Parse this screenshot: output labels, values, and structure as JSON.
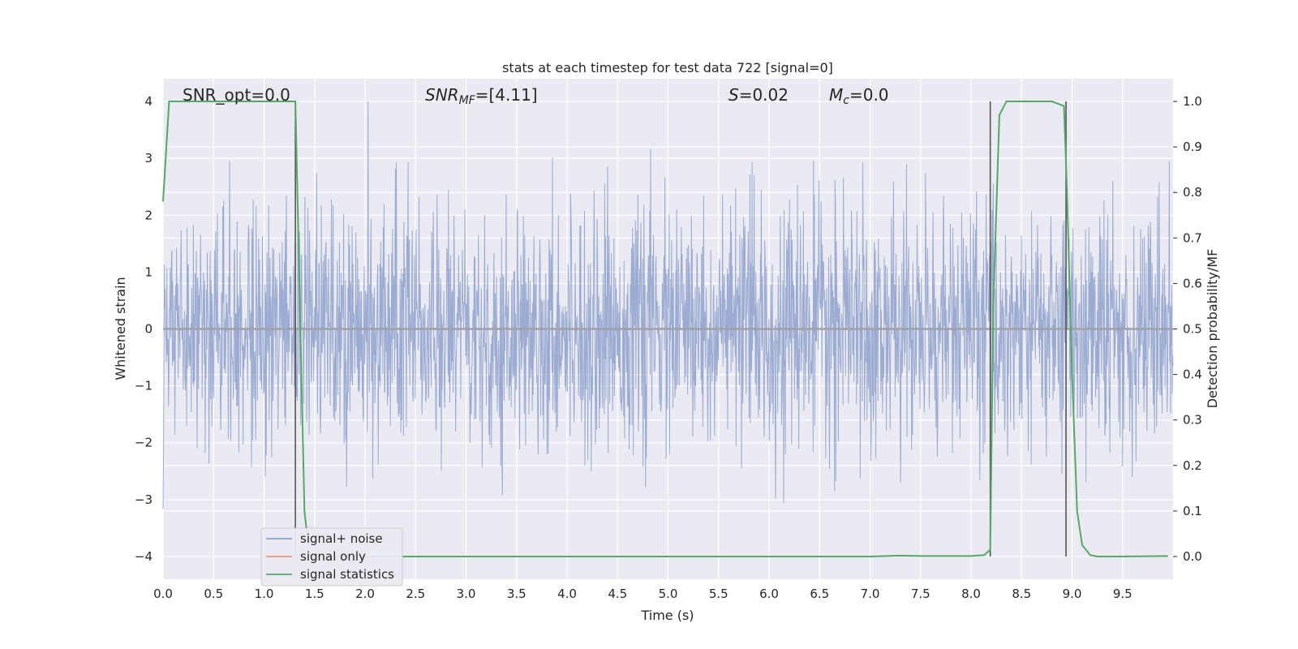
{
  "chart_data": {
    "type": "line",
    "title": "stats at each timestep for test data 722 [signal=0]",
    "xlabel": "Time (s)",
    "ylabel": "Whitened strain",
    "y2label": "Detection probability/MF",
    "xlim": [
      0.0,
      10.0
    ],
    "ylim": [
      -4.4,
      4.4
    ],
    "y2lim": [
      -0.05,
      1.05
    ],
    "x_ticks": [
      "0.0",
      "0.5",
      "1.0",
      "1.5",
      "2.0",
      "2.5",
      "3.0",
      "3.5",
      "4.0",
      "4.5",
      "5.0",
      "5.5",
      "6.0",
      "6.5",
      "7.0",
      "7.5",
      "8.0",
      "8.5",
      "9.0",
      "9.5"
    ],
    "y_ticks": [
      "4",
      "3",
      "2",
      "1",
      "0",
      "−1",
      "−2",
      "−3",
      "−4"
    ],
    "y2_ticks": [
      "1.0",
      "0.9",
      "0.8",
      "0.7",
      "0.6",
      "0.5",
      "0.4",
      "0.3",
      "0.2",
      "0.1",
      "0.0"
    ],
    "grid": true,
    "legend_placement": "lower-left",
    "annotations": {
      "snr_opt": "SNR_opt=0.0",
      "snr_mf": "SNR_MF=[4.11]",
      "s": "S=0.02",
      "mc": "M_c=0.0"
    },
    "series": [
      {
        "name": "signal+ noise",
        "color": "#8da0cb",
        "description_values": "dense whitened noise, mostly within ±1.8, peaks ±4.0",
        "envelope": {
          "x_range": [
            0.0,
            10.0
          ],
          "core_abs": 1.6,
          "peak_abs": 4.0
        }
      },
      {
        "name": "signal only",
        "color": "#e8967a",
        "values_constant": 0.0
      },
      {
        "name": "signal statistics",
        "color": "#55a868",
        "axis": "right",
        "x": [
          0.0,
          0.06,
          0.12,
          0.2,
          0.5,
          1.0,
          1.3,
          1.31,
          1.35,
          1.4,
          1.45,
          1.5,
          2.0,
          3.0,
          4.0,
          5.0,
          6.0,
          7.0,
          7.3,
          7.5,
          8.0,
          8.13,
          8.19,
          8.22,
          8.28,
          8.35,
          8.5,
          8.8,
          8.92,
          8.95,
          9.0,
          9.05,
          9.1,
          9.18,
          9.25,
          9.5,
          9.95
        ],
        "y": [
          0.78,
          1.0,
          1.0,
          1.0,
          1.0,
          1.0,
          1.0,
          1.0,
          0.6,
          0.1,
          0.0,
          0.0,
          0.0,
          0.0,
          0.0,
          0.0,
          0.0,
          0.0,
          0.002,
          0.001,
          0.001,
          0.003,
          0.015,
          0.55,
          0.97,
          1.0,
          1.0,
          1.0,
          0.99,
          0.8,
          0.4,
          0.1,
          0.025,
          0.003,
          0.0,
          0.0,
          0.001
        ]
      }
    ],
    "vertical_markers_x": [
      1.31,
      8.19,
      8.94
    ],
    "marker_color": "#555555"
  }
}
